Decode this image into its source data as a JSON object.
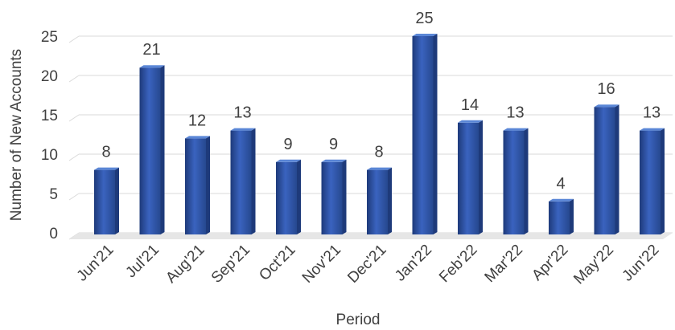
{
  "chart_data": {
    "type": "bar",
    "categories": [
      "Jun'21",
      "Jul'21",
      "Aug'21",
      "Sep'21",
      "Oct'21",
      "Nov'21",
      "Dec'21",
      "Jan'22",
      "Feb'22",
      "Mar'22",
      "Apr'22",
      "May'22",
      "Jun'22"
    ],
    "values": [
      8,
      21,
      12,
      13,
      9,
      9,
      8,
      25,
      14,
      13,
      4,
      16,
      13
    ],
    "xlabel": "Period",
    "ylabel": "Number of New Accounts",
    "ylim": [
      0,
      25
    ],
    "yticks": [
      0,
      5,
      10,
      15,
      20,
      25
    ],
    "grid": true,
    "colors": {
      "bar_light": "#4472C4",
      "bar_mid": "#2F55A8",
      "bar_dark": "#1E3A7A",
      "bar_top": "#5A86D6",
      "grid": "#D9D9D9",
      "floor": "#E6E6E6",
      "text": "#404040"
    }
  }
}
